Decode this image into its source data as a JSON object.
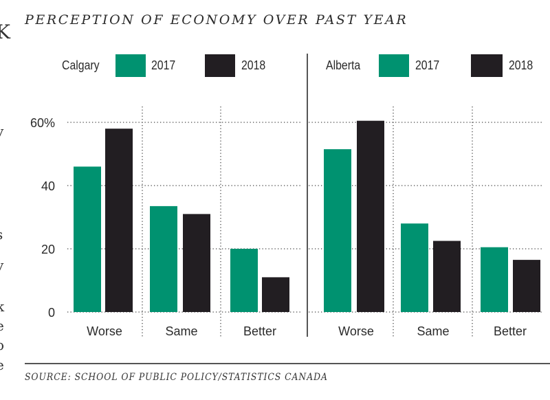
{
  "title": "PERCEPTION OF ECONOMY OVER PAST YEAR",
  "source": "SOURCE: SCHOOL OF PUBLIC POLICY/STATISTICS CANADA",
  "colors": {
    "y2017": "#009270",
    "y2018": "#221e22",
    "grid": "#555555",
    "text": "#2a2a2a"
  },
  "panels": [
    {
      "name": "Calgary",
      "legend": [
        "2017",
        "2018"
      ]
    },
    {
      "name": "Alberta",
      "legend": [
        "2017",
        "2018"
      ]
    }
  ],
  "left_fragments": [
    "y",
    ",",
    "-",
    "-",
    "-",
    "s",
    "y",
    "-",
    "k",
    "e",
    "o",
    "e"
  ],
  "chart_data": [
    {
      "type": "bar",
      "title": "Calgary",
      "categories": [
        "Worse",
        "Same",
        "Better"
      ],
      "series": [
        {
          "name": "2017",
          "values": [
            46,
            33.5,
            20
          ]
        },
        {
          "name": "2018",
          "values": [
            58,
            31,
            11
          ]
        }
      ],
      "yticks": [
        "0",
        "20",
        "40",
        "60%"
      ],
      "ylim": [
        0,
        60
      ],
      "grid": true,
      "legend": "top",
      "xlabel": "",
      "ylabel": ""
    },
    {
      "type": "bar",
      "title": "Alberta",
      "categories": [
        "Worse",
        "Same",
        "Better"
      ],
      "series": [
        {
          "name": "2017",
          "values": [
            51.5,
            28,
            20.5
          ]
        },
        {
          "name": "2018",
          "values": [
            60.5,
            22.5,
            16.5
          ]
        }
      ],
      "ylim": [
        0,
        60
      ],
      "grid": true,
      "legend": "top",
      "xlabel": "",
      "ylabel": ""
    }
  ]
}
